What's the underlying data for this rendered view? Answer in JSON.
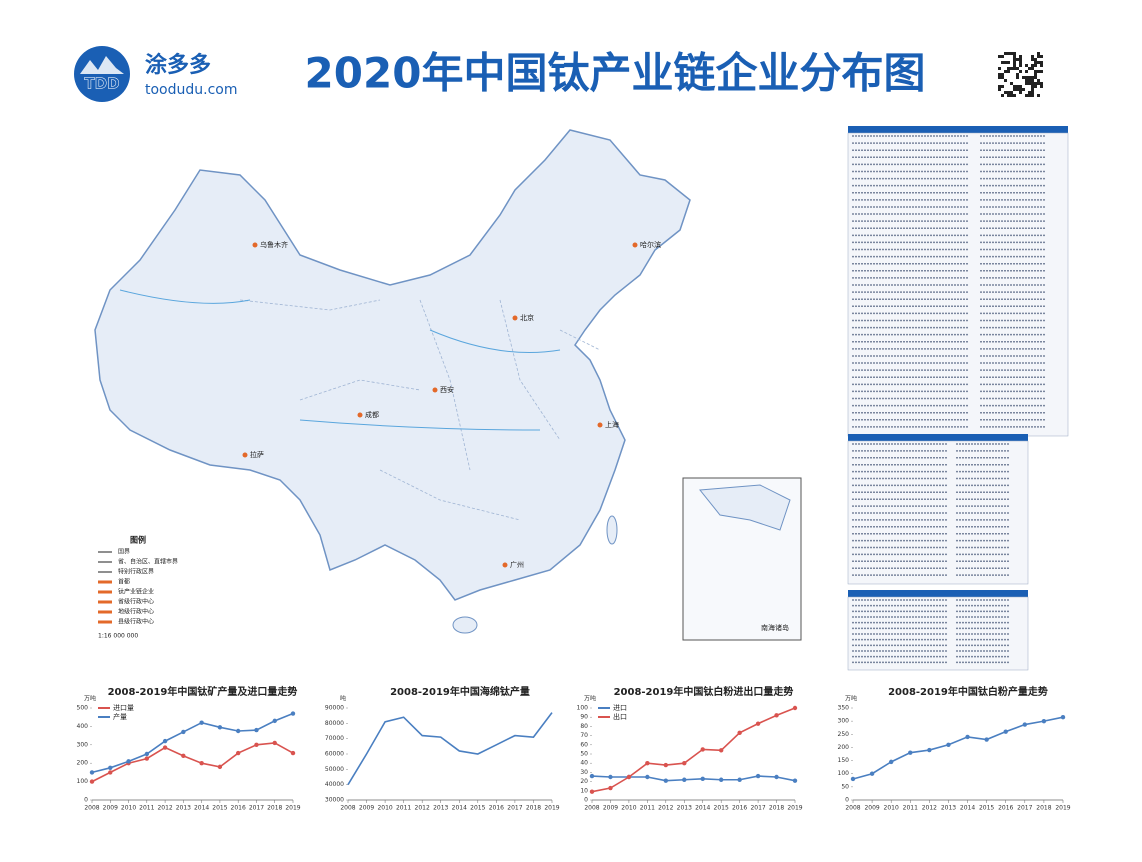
{
  "header": {
    "logo": "TDD",
    "brand": "涂多多",
    "site": "toodudu.com",
    "title": "2020年中国钛产业链企业分布图"
  },
  "map": {
    "legend_title": "图例",
    "legend_items": [
      "国界",
      "省、自治区、直辖市界",
      "特别行政区界",
      "首都",
      "钛产业链企业",
      "省级行政中心",
      "地级行政中心",
      "县级行政中心"
    ],
    "scale": "1:16 000 000",
    "cities": [
      "乌鲁木齐",
      "拉萨",
      "哈尔滨",
      "北京",
      "成都",
      "广州",
      "上海",
      "西安"
    ],
    "inset": "南海诸岛"
  },
  "chart_data": [
    {
      "type": "line",
      "title": "2008-2019年中国钛矿产量及进口量走势",
      "y_label": "万吨",
      "categories": [
        "2008",
        "2009",
        "2010",
        "2011",
        "2012",
        "2013",
        "2014",
        "2015",
        "2016",
        "2017",
        "2018",
        "2019"
      ],
      "ylim": [
        0,
        500
      ],
      "yticks": [
        0,
        100,
        200,
        300,
        400,
        500
      ],
      "markers": true,
      "series": [
        {
          "name": "进口量",
          "color": "#d9534f",
          "values": [
            100,
            150,
            200,
            225,
            285,
            240,
            200,
            180,
            255,
            300,
            310,
            255
          ]
        },
        {
          "name": "产量",
          "color": "#4a7fc1",
          "values": [
            150,
            175,
            210,
            250,
            320,
            370,
            420,
            395,
            375,
            380,
            430,
            470
          ]
        }
      ]
    },
    {
      "type": "line",
      "title": "2008-2019年中国海绵钛产量",
      "y_label": "吨",
      "categories": [
        "2008",
        "2009",
        "2010",
        "2011",
        "2012",
        "2013",
        "2014",
        "2015",
        "2016",
        "2017",
        "2018",
        "2019"
      ],
      "ylim": [
        30000,
        90000
      ],
      "yticks": [
        30000,
        40000,
        50000,
        60000,
        70000,
        80000,
        90000
      ],
      "markers": false,
      "color": "#4a7fc1",
      "values": [
        40000,
        60000,
        81000,
        84000,
        72000,
        71000,
        62000,
        60000,
        66000,
        72000,
        71000,
        87000
      ]
    },
    {
      "type": "line",
      "title": "2008-2019年中国钛白粉进出口量走势",
      "y_label": "万吨",
      "categories": [
        "2008",
        "2009",
        "2010",
        "2011",
        "2012",
        "2013",
        "2014",
        "2015",
        "2016",
        "2017",
        "2018",
        "2019"
      ],
      "ylim": [
        0,
        100
      ],
      "yticks": [
        0,
        10,
        20,
        30,
        40,
        50,
        60,
        70,
        80,
        90,
        100
      ],
      "markers": true,
      "series": [
        {
          "name": "进口",
          "color": "#4a7fc1",
          "values": [
            26,
            25,
            25,
            25,
            21,
            22,
            23,
            22,
            22,
            26,
            25,
            21
          ]
        },
        {
          "name": "出口",
          "color": "#d9534f",
          "values": [
            9,
            13,
            25,
            40,
            38,
            40,
            55,
            54,
            73,
            83,
            92,
            100
          ]
        }
      ]
    },
    {
      "type": "line",
      "title": "2008-2019年中国钛白粉产量走势",
      "y_label": "万吨",
      "categories": [
        "2008",
        "2009",
        "2010",
        "2011",
        "2012",
        "2013",
        "2014",
        "2015",
        "2016",
        "2017",
        "2018",
        "2019"
      ],
      "ylim": [
        0,
        350
      ],
      "yticks": [
        0,
        50,
        100,
        150,
        200,
        250,
        300,
        350
      ],
      "markers": true,
      "color": "#4a7fc1",
      "values": [
        80,
        100,
        145,
        180,
        190,
        210,
        240,
        230,
        260,
        287,
        300,
        315
      ]
    }
  ]
}
